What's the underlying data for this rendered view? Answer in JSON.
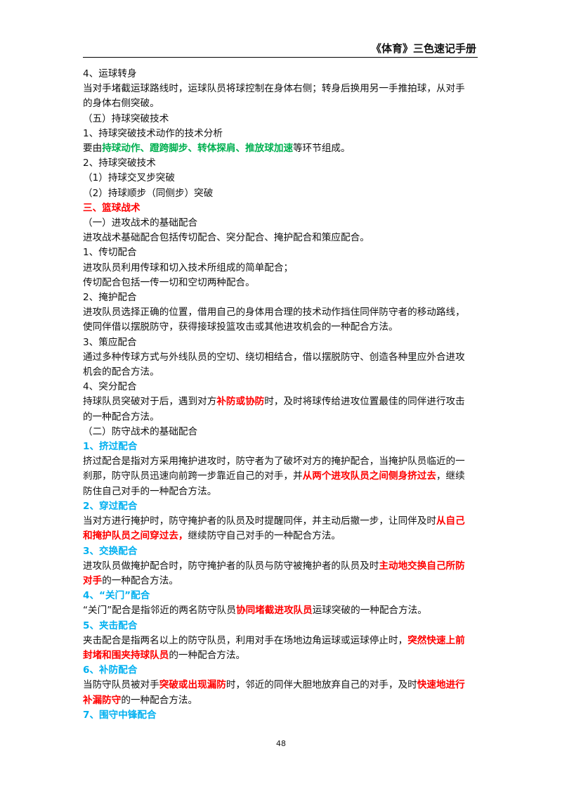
{
  "header": {
    "title": "《体育》三色速记手册"
  },
  "lines": [
    [
      {
        "t": "4、运球转身"
      }
    ],
    [
      {
        "t": "当对手堵截运球路线时，运球队员将球控制在身体右侧；转身后换用另一手推拍球，从对手"
      }
    ],
    [
      {
        "t": "的身体右侧突破。"
      }
    ],
    [
      {
        "t": "（五）持球突破技术"
      }
    ],
    [
      {
        "t": "1、持球突破技术动作的技术分析"
      }
    ],
    [
      {
        "t": "要由"
      },
      {
        "t": "持球动作、蹬跨脚步、转体探肩、推放球加速",
        "c": "green"
      },
      {
        "t": "等环节组成。"
      }
    ],
    [
      {
        "t": "2、持球突破技术"
      }
    ],
    [
      {
        "t": "（1）持球交叉步突破"
      }
    ],
    [
      {
        "t": "（2）持球顺步（同侧步）突破"
      }
    ],
    [
      {
        "t": "三、篮球战术",
        "c": "red"
      }
    ],
    [
      {
        "t": "（一）进攻战术的基础配合"
      }
    ],
    [
      {
        "t": "进攻战术基础配合包括传切配合、突分配合、掩护配合和策应配合。"
      }
    ],
    [
      {
        "t": "1、传切配合"
      }
    ],
    [
      {
        "t": "进攻队员利用传球和切入技术所组成的简单配合；"
      }
    ],
    [
      {
        "t": "传切配合包括一传一切和空切两种配合。"
      }
    ],
    [
      {
        "t": "2、掩护配合"
      }
    ],
    [
      {
        "t": "进攻队员选择正确的位置，借用自己的身体用合理的技术动作挡住同伴防守者的移动路线，"
      }
    ],
    [
      {
        "t": "使同伴借以摆脱防守，获得接球投篮攻击或其他进攻机会的一种配合方法。"
      }
    ],
    [
      {
        "t": "3、策应配合"
      }
    ],
    [
      {
        "t": "通过多种传球方式与外线队员的空切、绕切相结合，借以摆脱防守、创造各种里应外合进攻"
      }
    ],
    [
      {
        "t": "机会的配合方法。"
      }
    ],
    [
      {
        "t": "4、突分配合"
      }
    ],
    [
      {
        "t": "持球队员突破对于后，遇到对方"
      },
      {
        "t": "补防或协防",
        "c": "red"
      },
      {
        "t": "时，及时将球传给进攻位置最佳的同伴进行攻击"
      }
    ],
    [
      {
        "t": "的一种配合方法。"
      }
    ],
    [
      {
        "t": "（二）防守战术的基础配合"
      }
    ],
    [
      {
        "t": "1、挤过配合",
        "c": "blue"
      }
    ],
    [
      {
        "t": "挤过配合是指对方采用掩护进攻时，防守者为了破坏对方的掩护配合，当掩护队员临近的一"
      }
    ],
    [
      {
        "t": "刹那，防守队员迅速向前跨一步靠近自己的对手，并"
      },
      {
        "t": "从两个进攻队员之间侧身挤过去",
        "c": "red"
      },
      {
        "t": "，继续"
      }
    ],
    [
      {
        "t": "防住自己对手的一种配合方法。"
      }
    ],
    [
      {
        "t": "2、穿过配合",
        "c": "blue"
      }
    ],
    [
      {
        "t": "当对方进行掩护时，防守掩护者的队员及时提醒同伴，并主动后撤一步，让同伴及时"
      },
      {
        "t": "从自己",
        "c": "red"
      }
    ],
    [
      {
        "t": "和掩护队员之间穿过去，",
        "c": "red"
      },
      {
        "t": "继续防守自己对手的一种配合方法。"
      }
    ],
    [
      {
        "t": "3、交换配合",
        "c": "blue"
      }
    ],
    [
      {
        "t": "进攻队员做掩护配合时，防守掩护者的队员与防守被掩护者的队员及时"
      },
      {
        "t": "主动地交换自己所防",
        "c": "red"
      }
    ],
    [
      {
        "t": "对手",
        "c": "red"
      },
      {
        "t": "的一种配合方法。"
      }
    ],
    [
      {
        "t": "4、“关门”配合",
        "c": "blue"
      }
    ],
    [
      {
        "t": "“关门”配合是指邻近的两名防守队员"
      },
      {
        "t": "协同堵截进攻队员",
        "c": "red"
      },
      {
        "t": "运球突破的一种配合方法。"
      }
    ],
    [
      {
        "t": "5、夹击配合",
        "c": "blue"
      }
    ],
    [
      {
        "t": "夹击配合是指两名以上的防守队员，利用对手在场地边角运球或运球停止时，"
      },
      {
        "t": "突然快速上前",
        "c": "red"
      }
    ],
    [
      {
        "t": "封堵和围夹持球队员",
        "c": "red"
      },
      {
        "t": "的一种配合方法。"
      }
    ],
    [
      {
        "t": "6、补防配合",
        "c": "blue"
      }
    ],
    [
      {
        "t": "当防守队员被对手"
      },
      {
        "t": "突破或出现漏防",
        "c": "red"
      },
      {
        "t": "时，邻近的同伴大胆地放弃自己的对手，及时"
      },
      {
        "t": "快速地进行",
        "c": "red"
      }
    ],
    [
      {
        "t": "补漏防守",
        "c": "red"
      },
      {
        "t": "的一种配合方法。"
      }
    ],
    [
      {
        "t": "7、围守中锋配合",
        "c": "blue"
      }
    ]
  ],
  "footer": {
    "page_number": "48"
  }
}
